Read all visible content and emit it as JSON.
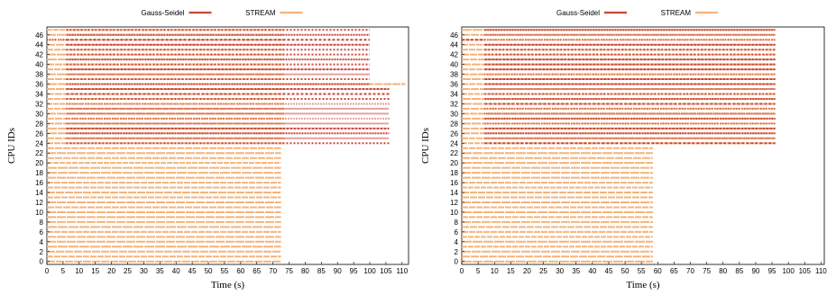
{
  "colors": {
    "gauss": "#c8463a",
    "stream": "#f5b27a"
  },
  "chart_data": [
    {
      "type": "scatter",
      "xlabel": "Time (s)",
      "ylabel": "CPU IDs",
      "xlim": [
        0,
        112
      ],
      "ylim": [
        -0.6,
        47.6
      ],
      "x_ticks": [
        0,
        5,
        10,
        15,
        20,
        25,
        30,
        35,
        40,
        45,
        50,
        55,
        60,
        65,
        70,
        75,
        80,
        85,
        90,
        95,
        100,
        105,
        110
      ],
      "y_ticks": [
        0,
        2,
        4,
        6,
        8,
        10,
        12,
        14,
        16,
        18,
        20,
        22,
        24,
        26,
        28,
        30,
        32,
        34,
        36,
        38,
        40,
        42,
        44,
        46
      ],
      "legend": {
        "placement": "top-center",
        "entries": [
          "Gauss-Seidel",
          "STREAM"
        ]
      },
      "series": [
        {
          "name": "STREAM",
          "segments": [
            {
              "cpus": [
                0,
                23
              ],
              "x": [
                0,
                72.5
              ]
            },
            {
              "cpus": [
                24,
                47
              ],
              "x": [
                0,
                73.5
              ]
            },
            {
              "cpus": [
                36,
                36
              ],
              "x": [
                73.5,
                111
              ]
            }
          ]
        },
        {
          "name": "Gauss-Seidel",
          "segments": [
            {
              "cpus": [
                45,
                45
              ],
              "x": [
                0,
                6
              ]
            },
            {
              "cpus": [
                24,
                27
              ],
              "x": [
                6,
                106
              ]
            },
            {
              "cpus": [
                28,
                35
              ],
              "x": [
                6,
                106
              ]
            },
            {
              "cpus": [
                36,
                47
              ],
              "x": [
                6,
                100
              ]
            }
          ]
        }
      ]
    },
    {
      "type": "scatter",
      "xlabel": "Time (s)",
      "ylabel": "CPU IDs",
      "xlim": [
        0,
        111
      ],
      "ylim": [
        -0.6,
        47.6
      ],
      "x_ticks": [
        0,
        5,
        10,
        15,
        20,
        25,
        30,
        35,
        40,
        45,
        50,
        55,
        60,
        65,
        70,
        75,
        80,
        85,
        90,
        95,
        100,
        105,
        110
      ],
      "y_ticks": [
        0,
        2,
        4,
        6,
        8,
        10,
        12,
        14,
        16,
        18,
        20,
        22,
        24,
        26,
        28,
        30,
        32,
        34,
        36,
        38,
        40,
        42,
        44,
        46
      ],
      "legend": {
        "placement": "top-center",
        "entries": [
          "Gauss-Seidel",
          "STREAM"
        ]
      },
      "series": [
        {
          "name": "STREAM",
          "segments": [
            {
              "cpus": [
                0,
                23
              ],
              "x": [
                0,
                58.5
              ]
            },
            {
              "cpus": [
                24,
                47
              ],
              "x": [
                0,
                96
              ]
            }
          ]
        },
        {
          "name": "Gauss-Seidel",
          "segments": [
            {
              "cpus": [
                45,
                45
              ],
              "x": [
                0,
                7
              ]
            },
            {
              "cpus": [
                24,
                35
              ],
              "x": [
                7,
                96
              ]
            },
            {
              "cpus": [
                36,
                47
              ],
              "x": [
                7,
                96
              ]
            }
          ]
        }
      ]
    }
  ]
}
